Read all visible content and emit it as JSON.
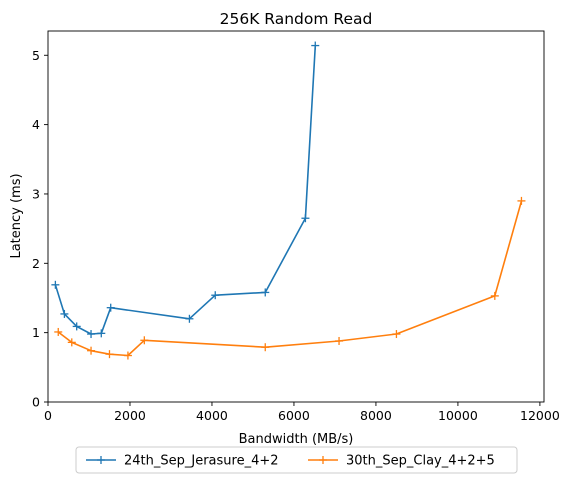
{
  "chart_data": {
    "type": "line",
    "title": "256K  Random Read",
    "xlabel": "Bandwidth (MB/s)",
    "ylabel": "Latency (ms)",
    "xlim": [
      0,
      12100
    ],
    "ylim": [
      0,
      5.35
    ],
    "xticks": [
      0,
      2000,
      4000,
      6000,
      8000,
      10000,
      12000
    ],
    "yticks": [
      0,
      1,
      2,
      3,
      4,
      5
    ],
    "grid": false,
    "legend_position": "bottom-center",
    "marker": "+",
    "series": [
      {
        "name": "24th_Sep_Jerasure_4+2",
        "color": "#1f77b4",
        "points": [
          [
            180,
            1.69
          ],
          [
            400,
            1.27
          ],
          [
            700,
            1.09
          ],
          [
            1050,
            0.98
          ],
          [
            1300,
            0.99
          ],
          [
            1530,
            1.36
          ],
          [
            3450,
            1.2
          ],
          [
            4080,
            1.54
          ],
          [
            5300,
            1.58
          ],
          [
            6280,
            2.65
          ],
          [
            6520,
            5.14
          ]
        ]
      },
      {
        "name": "30th_Sep_Clay_4+2+5",
        "color": "#ff7f0e",
        "points": [
          [
            250,
            1.01
          ],
          [
            580,
            0.86
          ],
          [
            1050,
            0.74
          ],
          [
            1500,
            0.69
          ],
          [
            1950,
            0.67
          ],
          [
            2350,
            0.89
          ],
          [
            5300,
            0.79
          ],
          [
            7100,
            0.88
          ],
          [
            8500,
            0.98
          ],
          [
            10900,
            1.53
          ],
          [
            11550,
            2.9
          ]
        ]
      }
    ]
  }
}
